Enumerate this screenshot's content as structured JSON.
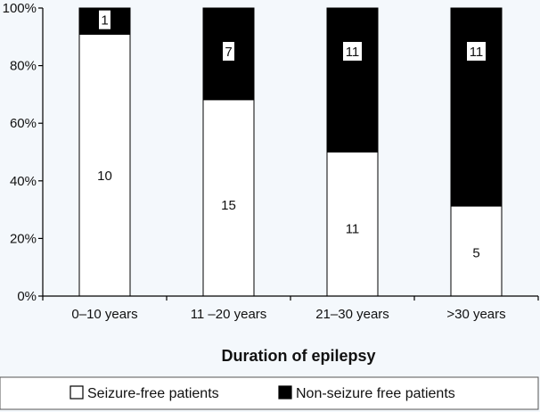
{
  "chart_data": {
    "type": "bar",
    "stacked": true,
    "percent_stacked": true,
    "categories": [
      "0–10 years",
      "11 –20 years",
      "21–30 years",
      ">30 years"
    ],
    "series": [
      {
        "name": "Seizure-free patients",
        "color": "#ffffff",
        "values": [
          10,
          15,
          11,
          5
        ]
      },
      {
        "name": "Non-seizure free patients",
        "color": "#000000",
        "values": [
          1,
          7,
          11,
          11
        ]
      }
    ],
    "xlabel": "Duration of epilepsy",
    "ylabel": "",
    "ylim": [
      0,
      100
    ],
    "yticks": [
      "0%",
      "20%",
      "40%",
      "60%",
      "80%",
      "100%"
    ],
    "grid": false,
    "legend_position": "bottom"
  }
}
